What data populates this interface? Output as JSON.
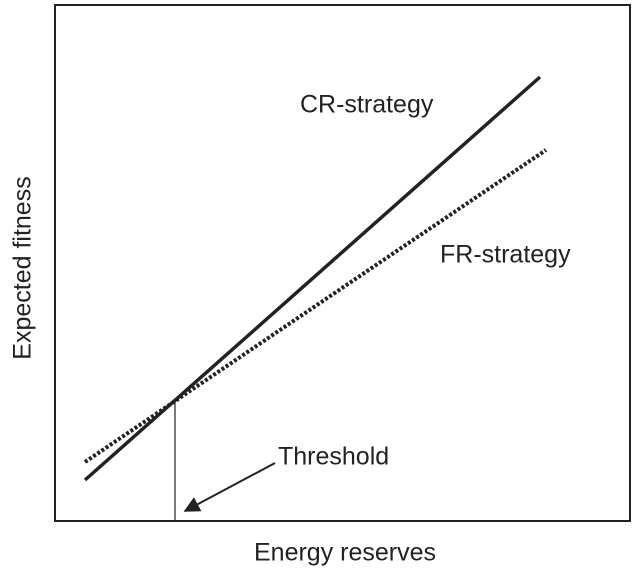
{
  "x_label": "Energy reserves",
  "y_label": "Expected fitness",
  "lines": [
    {
      "label": "CR-strategy"
    },
    {
      "label": "FR-strategy"
    }
  ],
  "annotation": "Threshold"
}
